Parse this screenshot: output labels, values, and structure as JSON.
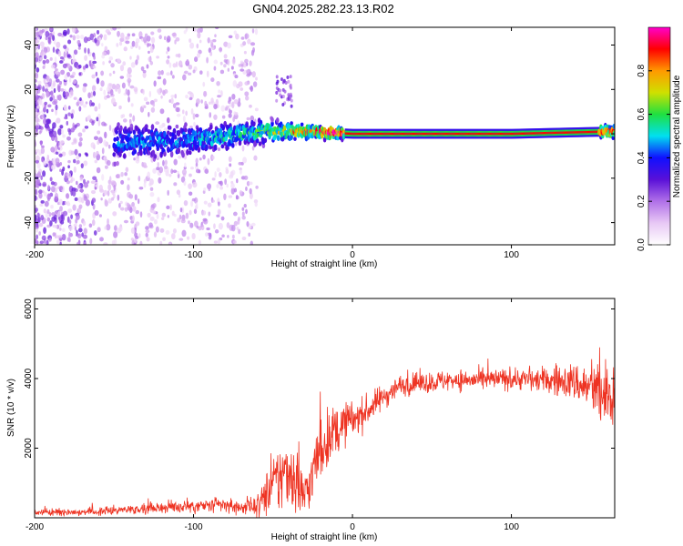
{
  "figure_title": "GN04.2025.282.23.13.R02",
  "colors": {
    "background": "#ffffff",
    "axis": "#000000",
    "snr_line": "#ee3322",
    "colormap": [
      "#ffffff",
      "#e8c8f5",
      "#b070e8",
      "#5a10d8",
      "#1010ff",
      "#00e0f0",
      "#20e040",
      "#d0e000",
      "#ff9900",
      "#ff0000",
      "#ff00cc"
    ]
  },
  "chart_data": [
    {
      "type": "heatmap",
      "title": "GN04.2025.282.23.13.R02",
      "xlabel": "Height of straight line (km)",
      "ylabel": "Frequency (Hz)",
      "xlim": [
        -200,
        165
      ],
      "ylim": [
        -50,
        48
      ],
      "xticks": [
        -200,
        -100,
        0,
        100
      ],
      "yticks": [
        -40,
        -20,
        0,
        20,
        40
      ],
      "xtick_labels": [
        "-200",
        "-100",
        "0",
        "100"
      ],
      "ytick_labels": [
        "-40",
        "-20",
        "0",
        "20",
        "40"
      ],
      "colorbar": {
        "label": "Normalized spectral amplitude",
        "range": [
          0.0,
          1.0
        ],
        "ticks": [
          0.0,
          0.2,
          0.4,
          0.6,
          0.8
        ],
        "tick_labels": [
          "0.0",
          "0.2",
          "0.4",
          "0.6",
          "0.8"
        ]
      },
      "description_points": [
        {
          "x": -200,
          "freq_center": 0,
          "spread": 48,
          "amplitude": 0.15
        },
        {
          "x": -150,
          "freq_center": -4,
          "spread": 8,
          "amplitude": 0.3
        },
        {
          "x": -100,
          "freq_center": -3,
          "spread": 6,
          "amplitude": 0.35
        },
        {
          "x": -60,
          "freq_center": 1,
          "spread": 5,
          "amplitude": 0.45
        },
        {
          "x": -30,
          "freq_center": 1,
          "spread": 3,
          "amplitude": 0.7
        },
        {
          "x": 0,
          "freq_center": 0,
          "spread": 2,
          "amplitude": 0.95
        },
        {
          "x": 100,
          "freq_center": 0,
          "spread": 2,
          "amplitude": 0.95
        },
        {
          "x": 160,
          "freq_center": 1,
          "spread": 3,
          "amplitude": 0.7
        }
      ]
    },
    {
      "type": "line",
      "title": "",
      "xlabel": "Height of straight line (km)",
      "ylabel": "SNR (10 * v/v)",
      "xlim": [
        -200,
        165
      ],
      "ylim": [
        0,
        6300
      ],
      "xticks": [
        -200,
        -100,
        0,
        100
      ],
      "yticks": [
        2000,
        4000,
        6000
      ],
      "xtick_labels": [
        "-200",
        "-100",
        "0",
        "100"
      ],
      "ytick_labels": [
        "2000",
        "4000",
        "6000"
      ],
      "series": [
        {
          "name": "SNR",
          "color": "#ee3322",
          "envelope_x": [
            -200,
            -160,
            -140,
            -120,
            -100,
            -80,
            -70,
            -60,
            -50,
            -45,
            -40,
            -35,
            -30,
            -25,
            -20,
            -15,
            -10,
            -5,
            0,
            10,
            20,
            30,
            40,
            60,
            80,
            100,
            120,
            140,
            150,
            160,
            165
          ],
          "envelope_mean": [
            150,
            180,
            250,
            300,
            320,
            360,
            300,
            350,
            900,
            1200,
            1400,
            1000,
            600,
            1300,
            2000,
            2300,
            2500,
            2700,
            2800,
            3100,
            3500,
            3800,
            3850,
            3950,
            3950,
            4000,
            3950,
            3900,
            3700,
            3400,
            3600
          ],
          "envelope_noise": [
            80,
            90,
            110,
            140,
            160,
            200,
            180,
            250,
            700,
            900,
            900,
            800,
            600,
            700,
            800,
            700,
            600,
            500,
            450,
            350,
            300,
            250,
            250,
            250,
            250,
            250,
            300,
            450,
            650,
            900,
            700
          ]
        }
      ]
    }
  ]
}
